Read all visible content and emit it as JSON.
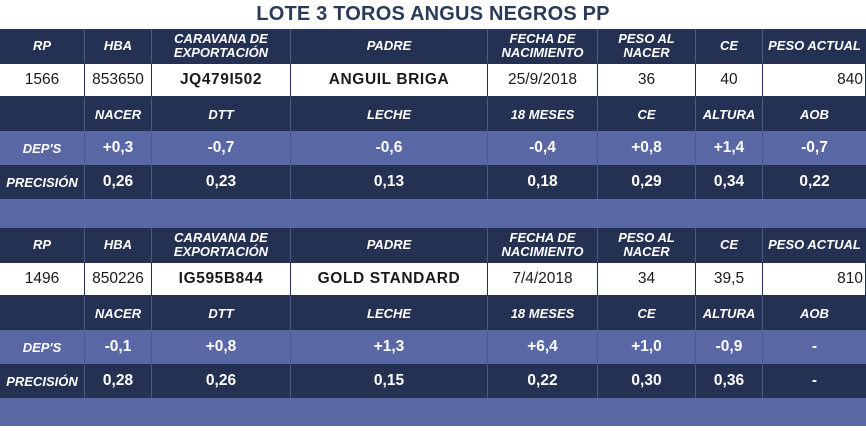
{
  "title": "LOTE 3 TOROS ANGUS NEGROS PP",
  "headers": [
    "RP",
    "HBA",
    "CARAVANA DE EXPORTACIÓN",
    "PADRE",
    "FECHA DE NACIMIENTO",
    "PESO AL NACER",
    "CE",
    "PESO ACTUAL"
  ],
  "sub_headers": [
    "",
    "NACER",
    "DTT",
    "LECHE",
    "18 MESES",
    "CE",
    "ALTURA",
    "AOB"
  ],
  "row_labels": {
    "deps": "DEP'S",
    "precision": "PRECISIÓN"
  },
  "animals": [
    {
      "rp": "1566",
      "hba": "853650",
      "caravana": "JQ479I502",
      "padre": "ANGUIL BRIGA",
      "fecha": "25/9/2018",
      "peso_nacer": "36",
      "ce": "40",
      "peso_actual": "840",
      "deps": [
        "+0,3",
        "-0,7",
        "-0,6",
        "-0,4",
        "+0,8",
        "+1,4",
        "-0,7"
      ],
      "precision": [
        "0,26",
        "0,23",
        "0,13",
        "0,18",
        "0,29",
        "0,34",
        "0,22"
      ]
    },
    {
      "rp": "1496",
      "hba": "850226",
      "caravana": "IG595B844",
      "padre": "GOLD STANDARD",
      "fecha": "7/4/2018",
      "peso_nacer": "34",
      "ce": "39,5",
      "peso_actual": "810",
      "deps": [
        "-0,1",
        "+0,8",
        "+1,3",
        "+6,4",
        "+1,0",
        "-0,9",
        "-"
      ],
      "precision": [
        "0,28",
        "0,26",
        "0,15",
        "0,22",
        "0,30",
        "0,36",
        "-"
      ]
    }
  ]
}
